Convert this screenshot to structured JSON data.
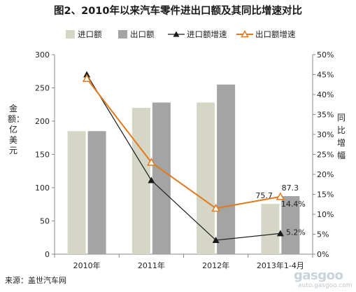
{
  "title": "图2、2010年以来汽车零件进出口额及其同比增速对比",
  "source": "来源：盖世汽车网",
  "watermark": {
    "logo": "gasgoo",
    "url": "auto.gasgoo.com"
  },
  "chart_data": {
    "type": "bar",
    "categories": [
      "2010年",
      "2011年",
      "2012年",
      "2013年1-4月"
    ],
    "bar_series": [
      {
        "name": "进口额",
        "values": [
          185,
          220,
          228,
          75.7
        ],
        "color": "#d6d6c6"
      },
      {
        "name": "出口额",
        "values": [
          185,
          228,
          255,
          87.3
        ],
        "color": "#a4a4a4"
      }
    ],
    "line_series": [
      {
        "name": "进口额增速",
        "values": [
          45,
          18.5,
          3.5,
          5.2
        ],
        "color": "#1a1a1a",
        "marker": "triangle-filled"
      },
      {
        "name": "出口额增速",
        "values": [
          44,
          23,
          11.5,
          14.4
        ],
        "color": "#e07a1c",
        "marker": "triangle-open"
      }
    ],
    "ylabel_left": "金额：亿美元",
    "ylabel_right": "同比增幅",
    "ylim_left": [
      0,
      300
    ],
    "yticks_left": [
      "0",
      "50",
      "100",
      "150",
      "200",
      "250",
      "300"
    ],
    "ylim_right": [
      0,
      50
    ],
    "yticks_right": [
      "0%",
      "5%",
      "10%",
      "15%",
      "20%",
      "25%",
      "30%",
      "35%",
      "40%",
      "45%",
      "50%"
    ],
    "annotations": [
      {
        "text": "75.7",
        "series": "进口额",
        "category": "2013年1-4月"
      },
      {
        "text": "87.3",
        "series": "出口额",
        "category": "2013年1-4月"
      },
      {
        "text": "14.4%",
        "series": "出口额增速",
        "category": "2013年1-4月"
      },
      {
        "text": "5.2%",
        "series": "进口额增速",
        "category": "2013年1-4月"
      }
    ],
    "legend_position": "top",
    "grid": false
  }
}
